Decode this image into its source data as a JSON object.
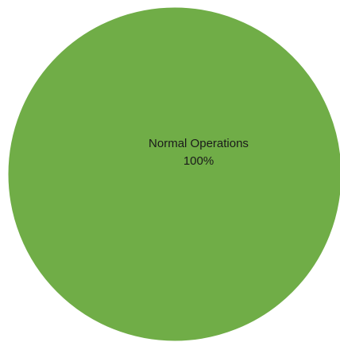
{
  "chart_data": {
    "type": "pie",
    "categories": [
      "Normal Operations"
    ],
    "values": [
      100
    ],
    "value_labels": [
      "100%"
    ],
    "colors": [
      "#70ad47"
    ],
    "title": "",
    "legend": "none"
  }
}
